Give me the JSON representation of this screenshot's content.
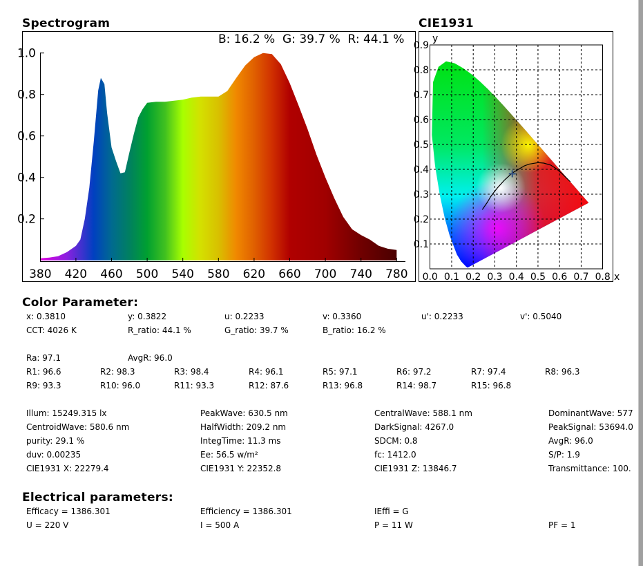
{
  "spectrogram": {
    "title": "Spectrogram",
    "rgb_summary": "B: 16.2 %  G: 39.7 %  R: 44.1 %"
  },
  "cie": {
    "title": "CIE1931"
  },
  "color_parameter": {
    "title": "Color Parameter:",
    "row1": [
      "x: 0.3810",
      "y: 0.3822",
      "u: 0.2233",
      "v: 0.3360",
      "u': 0.2233",
      "v': 0.5040"
    ],
    "row2": [
      "CCT: 4026 K",
      "R_ratio: 44.1 %",
      "G_ratio: 39.7 %",
      "B_ratio: 16.2 %"
    ],
    "ra_row": [
      "Ra: 97.1",
      "AvgR: 96.0"
    ],
    "r_row1": [
      "R1: 96.6",
      "R2: 98.3",
      "R3: 98.4",
      "R4: 96.1",
      "R5: 97.1",
      "R6: 97.2",
      "R7: 97.4",
      "R8: 96.3"
    ],
    "r_row2": [
      "R9: 93.3",
      "R10: 96.0",
      "R11: 93.3",
      "R12: 87.6",
      "R13: 96.8",
      "R14: 98.7",
      "R15: 96.8"
    ],
    "photometric": [
      [
        "Illum: 15249.315 lx",
        "PeakWave: 630.5 nm",
        "CentralWave: 588.1 nm",
        "DominantWave: 577"
      ],
      [
        "CentroidWave: 580.6 nm",
        "HalfWidth: 209.2 nm",
        "DarkSignal: 4267.0",
        "PeakSignal: 53694.0"
      ],
      [
        "purity: 29.1 %",
        "IntegTime: 11.3 ms",
        "SDCM: 0.8",
        "AvgR: 96.0"
      ],
      [
        "duv: 0.00235",
        "Ee: 56.5 w/m²",
        "fc: 1412.0",
        "S/P: 1.9"
      ],
      [
        "CIE1931 X: 22279.4",
        "CIE1931 Y: 22352.8",
        "CIE1931 Z: 13846.7",
        "Transmittance: 100."
      ]
    ]
  },
  "electrical": {
    "title": "Electrical parameters:",
    "rows": [
      [
        "Efficacy = 1386.301",
        "Efficiency = 1386.301",
        "IEffi = G",
        ""
      ],
      [
        "U = 220 V",
        "I = 500 A",
        "P = 11 W",
        "PF = 1"
      ]
    ]
  },
  "chart_data": [
    {
      "type": "area",
      "title": "Spectrogram",
      "xlabel": "",
      "ylabel": "",
      "xlim": [
        380,
        780
      ],
      "ylim": [
        0,
        1.0
      ],
      "x_ticks": [
        "380",
        "420",
        "460",
        "500",
        "540",
        "580",
        "620",
        "660",
        "700",
        "740",
        "780"
      ],
      "y_ticks": [
        "0.2",
        "0.4",
        "0.6",
        "0.8",
        "1.0"
      ],
      "grid": false,
      "fill": "wavelength color gradient",
      "x": [
        380,
        390,
        400,
        410,
        420,
        425,
        430,
        435,
        440,
        445,
        448,
        452,
        455,
        460,
        465,
        470,
        475,
        480,
        485,
        490,
        495,
        500,
        510,
        520,
        530,
        540,
        550,
        560,
        570,
        580,
        590,
        600,
        610,
        620,
        630,
        640,
        650,
        660,
        670,
        680,
        690,
        700,
        710,
        720,
        730,
        740,
        750,
        760,
        770,
        780
      ],
      "y": [
        0.01,
        0.013,
        0.02,
        0.04,
        0.07,
        0.1,
        0.2,
        0.35,
        0.57,
        0.82,
        0.88,
        0.85,
        0.71,
        0.545,
        0.48,
        0.42,
        0.425,
        0.52,
        0.61,
        0.69,
        0.73,
        0.76,
        0.765,
        0.765,
        0.77,
        0.775,
        0.785,
        0.79,
        0.79,
        0.79,
        0.817,
        0.88,
        0.94,
        0.98,
        1.0,
        0.995,
        0.946,
        0.855,
        0.746,
        0.633,
        0.51,
        0.4,
        0.3,
        0.21,
        0.15,
        0.122,
        0.1,
        0.07,
        0.056,
        0.05
      ],
      "gradient_stops": [
        [
          380,
          "#e000e0"
        ],
        [
          410,
          "#8a20e0"
        ],
        [
          440,
          "#0040c0"
        ],
        [
          460,
          "#006a90"
        ],
        [
          480,
          "#008060"
        ],
        [
          500,
          "#00a030"
        ],
        [
          520,
          "#40c020"
        ],
        [
          540,
          "#a8ff00"
        ],
        [
          560,
          "#d4e000"
        ],
        [
          580,
          "#d8c000"
        ],
        [
          600,
          "#f08800"
        ],
        [
          620,
          "#e06000"
        ],
        [
          640,
          "#d03000"
        ],
        [
          660,
          "#b00000"
        ],
        [
          700,
          "#a00000"
        ],
        [
          740,
          "#700000"
        ],
        [
          780,
          "#4a0000"
        ]
      ]
    },
    {
      "type": "scatter",
      "title": "CIE1931",
      "xlabel": "x",
      "ylabel": "y",
      "xlim": [
        0,
        0.8
      ],
      "ylim": [
        0,
        0.9
      ],
      "x_ticks": [
        "0.0",
        "0.1",
        "0.2",
        "0.3",
        "0.4",
        "0.5",
        "0.6",
        "0.7",
        "0.8"
      ],
      "y_ticks": [
        "0.1",
        "0.2",
        "0.3",
        "0.4",
        "0.5",
        "0.6",
        "0.7",
        "0.8",
        "0.9"
      ],
      "grid": true,
      "point": {
        "x": 0.381,
        "y": 0.382
      },
      "spectral_locus": [
        [
          0.1741,
          0.005
        ],
        [
          0.1666,
          0.0089
        ],
        [
          0.144,
          0.0297
        ],
        [
          0.1241,
          0.0578
        ],
        [
          0.0913,
          0.1327
        ],
        [
          0.0687,
          0.2007
        ],
        [
          0.0454,
          0.295
        ],
        [
          0.0235,
          0.4127
        ],
        [
          0.0082,
          0.5384
        ],
        [
          0.0139,
          0.7502
        ],
        [
          0.0389,
          0.812
        ],
        [
          0.0743,
          0.8338
        ],
        [
          0.1142,
          0.8262
        ],
        [
          0.1547,
          0.8059
        ],
        [
          0.1929,
          0.7816
        ],
        [
          0.2296,
          0.7543
        ],
        [
          0.2658,
          0.7243
        ],
        [
          0.3016,
          0.6923
        ],
        [
          0.3373,
          0.6589
        ],
        [
          0.3731,
          0.6245
        ],
        [
          0.4087,
          0.5896
        ],
        [
          0.4441,
          0.5547
        ],
        [
          0.4788,
          0.5202
        ],
        [
          0.5125,
          0.4866
        ],
        [
          0.5448,
          0.4544
        ],
        [
          0.5752,
          0.4242
        ],
        [
          0.6029,
          0.3965
        ],
        [
          0.627,
          0.3725
        ],
        [
          0.6482,
          0.3514
        ],
        [
          0.6658,
          0.334
        ],
        [
          0.6915,
          0.3083
        ],
        [
          0.7347,
          0.2653
        ]
      ],
      "planckian_locus": [
        [
          0.242,
          0.238
        ],
        [
          0.265,
          0.267
        ],
        [
          0.2807,
          0.29
        ],
        [
          0.2952,
          0.307
        ],
        [
          0.3135,
          0.327
        ],
        [
          0.3451,
          0.357
        ],
        [
          0.3805,
          0.385
        ],
        [
          0.4369,
          0.414
        ],
        [
          0.4599,
          0.421
        ],
        [
          0.5008,
          0.427
        ],
        [
          0.5267,
          0.425
        ],
        [
          0.559,
          0.417
        ],
        [
          0.5857,
          0.402
        ],
        [
          0.61,
          0.384
        ],
        [
          0.65,
          0.35
        ]
      ]
    }
  ]
}
